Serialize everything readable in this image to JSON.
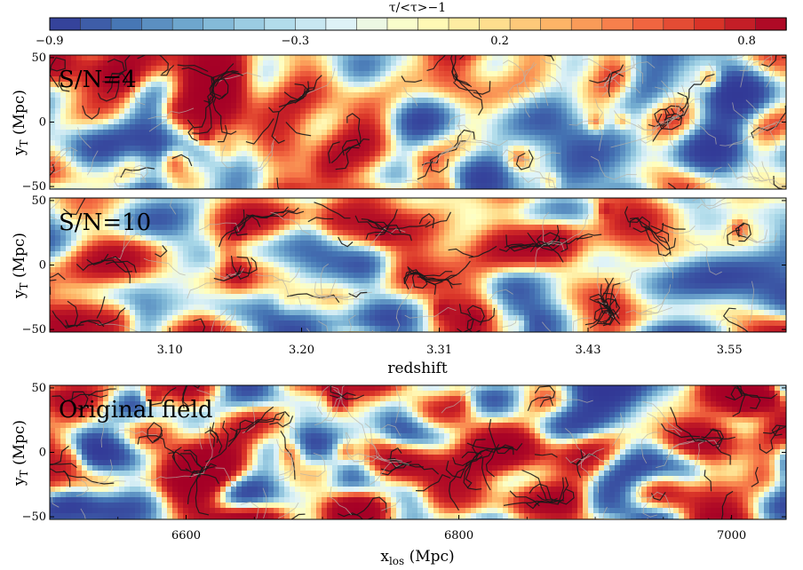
{
  "colorbar": {
    "label": "τ/<τ>−1",
    "range": [
      -0.9,
      0.9
    ],
    "ticks": [
      {
        "value": -0.9,
        "label": "−0.9"
      },
      {
        "value": -0.3,
        "label": "−0.3"
      },
      {
        "value": 0.2,
        "label": "0.2"
      },
      {
        "value": 0.8,
        "label": "0.8"
      }
    ],
    "n_bins": 24,
    "stops": [
      "#313695",
      "#4575b4",
      "#74add1",
      "#abd9e9",
      "#e0f3f8",
      "#ffffbf",
      "#fee090",
      "#fdae61",
      "#f46d43",
      "#d73027",
      "#a50026"
    ]
  },
  "shared": {
    "ylabel_main": "y",
    "ylabel_sub": "T",
    "ylabel_unit": " (Mpc)",
    "yticks": [
      "50",
      "0",
      "−50"
    ],
    "redshift_label": "redshift",
    "redshift_ticks": [
      "3.10",
      "3.20",
      "3.31",
      "3.43",
      "3.55"
    ],
    "xlabel_main": "x",
    "xlabel_sub": "los",
    "xlabel_unit": " (Mpc)",
    "xlos_ticks": [
      "6600",
      "6800",
      "7000"
    ]
  },
  "chart_data": [
    {
      "type": "heatmap",
      "title": "S/N=4",
      "ylabel": "yT (Mpc)",
      "ylim": [
        -52,
        52
      ],
      "value_range": [
        -0.9,
        0.9
      ],
      "seed": 4,
      "overlay": "filament skeleton"
    },
    {
      "type": "heatmap",
      "title": "S/N=10",
      "ylabel": "yT (Mpc)",
      "ylim": [
        -52,
        52
      ],
      "xlabel": "redshift",
      "xticks": [
        3.1,
        3.2,
        3.31,
        3.43,
        3.55
      ],
      "value_range": [
        -0.9,
        0.9
      ],
      "seed": 10,
      "overlay": "filament skeleton"
    },
    {
      "type": "heatmap",
      "title": "Original field",
      "ylabel": "yT (Mpc)",
      "ylim": [
        -52,
        52
      ],
      "xlabel": "xlos (Mpc)",
      "xlim": [
        6500,
        7040
      ],
      "xticks": [
        6600,
        6800,
        7000
      ],
      "value_range": [
        -0.9,
        0.9
      ],
      "seed": 99,
      "overlay": "filament skeleton"
    }
  ]
}
